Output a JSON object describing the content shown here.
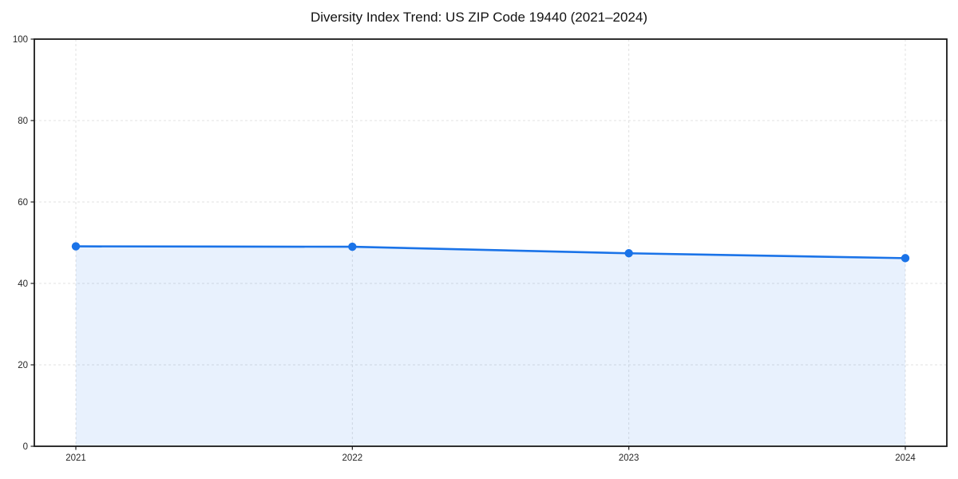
{
  "chart_data": {
    "type": "area",
    "title": "Diversity Index Trend: US ZIP Code 19440 (2021–2024)",
    "categories": [
      "2021",
      "2022",
      "2023",
      "2024"
    ],
    "series": [
      {
        "name": "Diversity Index",
        "values": [
          49.1,
          49.0,
          47.4,
          46.2
        ]
      }
    ],
    "xlabel": "",
    "ylabel": "",
    "ylim": [
      0,
      100
    ],
    "yticks": [
      0,
      20,
      40,
      60,
      80,
      100
    ],
    "grid": true,
    "grid_style": "dashed",
    "legend_position": "none",
    "colors": {
      "line": "#1a73e8",
      "marker": "#1a73e8",
      "fill": "rgba(26,115,232,0.10)",
      "grid": "#e0e0e0",
      "spine": "#1a1a1a",
      "tick": "#1a1a1a",
      "tick_label": "#262626",
      "title": "#111111",
      "background": "#ffffff"
    }
  }
}
